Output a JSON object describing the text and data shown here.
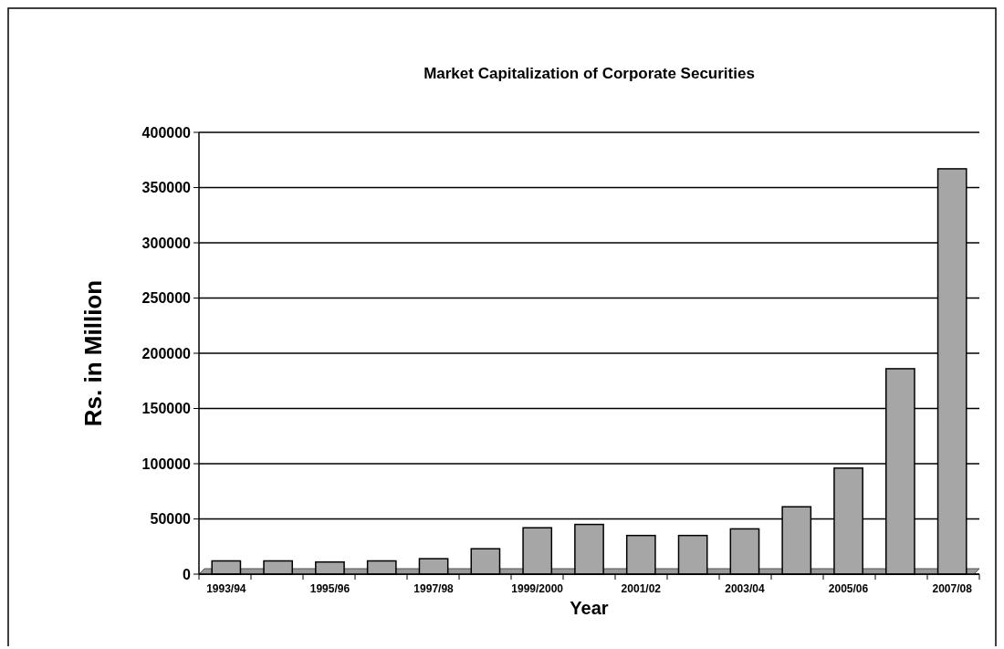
{
  "chart_data": {
    "type": "bar",
    "title": "Market Capitalization of Corporate Securities",
    "xlabel": "Year",
    "ylabel": "Rs. in Million",
    "categories": [
      "1993/94",
      null,
      "1995/96",
      null,
      "1997/98",
      null,
      "1999/2000",
      null,
      "2001/02",
      null,
      "2003/04",
      null,
      "2005/06",
      null,
      "2007/08"
    ],
    "values": [
      12000,
      12000,
      11000,
      12000,
      14000,
      23000,
      42000,
      45000,
      35000,
      35000,
      41000,
      61000,
      96000,
      186000,
      367000
    ],
    "color": "#a6a6a6",
    "ylim": [
      0,
      400000
    ],
    "yticks": [
      0,
      50000,
      100000,
      150000,
      200000,
      250000,
      300000,
      350000,
      400000
    ],
    "grid": "y"
  }
}
